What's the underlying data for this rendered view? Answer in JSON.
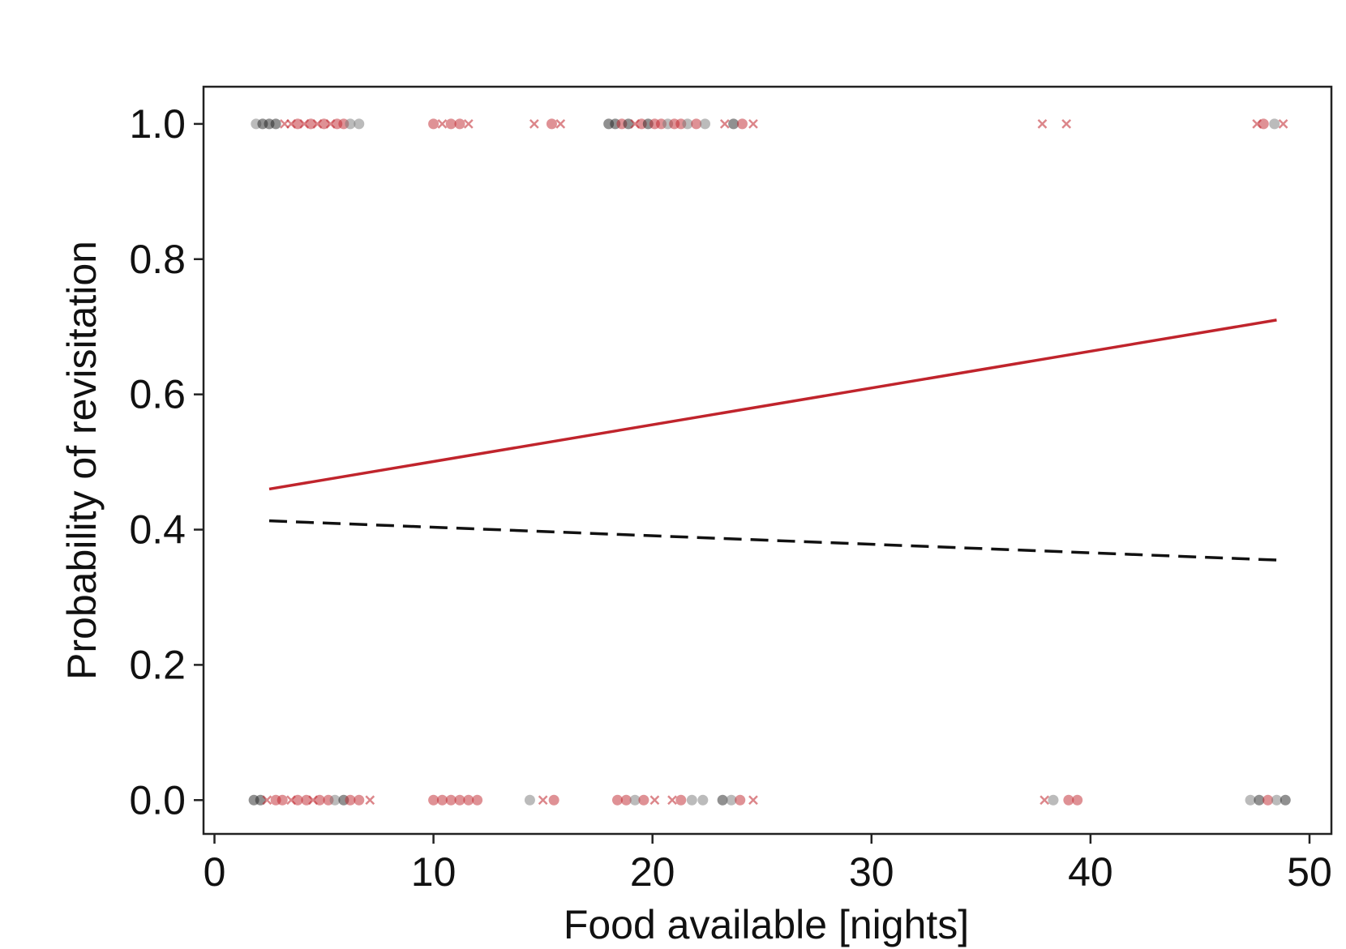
{
  "chart_data": {
    "type": "scatter",
    "title": "",
    "xlabel": "Food available [nights]",
    "ylabel": "Probability of revisitation",
    "xlim": [
      -0.5,
      51
    ],
    "ylim": [
      -0.05,
      1.055
    ],
    "x_ticks": [
      0,
      10,
      20,
      30,
      40,
      50
    ],
    "x_tick_labels": [
      "0",
      "10",
      "20",
      "30",
      "40",
      "50"
    ],
    "y_ticks": [
      0.0,
      0.2,
      0.4,
      0.6,
      0.8,
      1.0
    ],
    "y_tick_labels": [
      "0.0",
      "0.2",
      "0.4",
      "0.6",
      "0.8",
      "1.0"
    ],
    "grid": false,
    "legend": "none",
    "colors": {
      "red": "#c0242c",
      "black": "#222222",
      "grey": "#777777"
    },
    "fitted_lines": [
      {
        "style": "solid",
        "color": "#c0242c",
        "x": [
          2.5,
          48.5
        ],
        "y": [
          0.46,
          0.71
        ]
      },
      {
        "style": "dashed",
        "color": "#111111",
        "x": [
          2.5,
          48.5
        ],
        "y": [
          0.413,
          0.355
        ]
      }
    ],
    "points": [
      {
        "x": 1.9,
        "y": 1,
        "marker": "circle",
        "color": "#777777"
      },
      {
        "x": 2.2,
        "y": 1,
        "marker": "circle",
        "color": "#222222"
      },
      {
        "x": 2.5,
        "y": 1,
        "marker": "circle",
        "color": "#222222"
      },
      {
        "x": 2.8,
        "y": 1,
        "marker": "circle",
        "color": "#222222"
      },
      {
        "x": 3.2,
        "y": 1,
        "marker": "cross",
        "color": "#c0242c"
      },
      {
        "x": 3.5,
        "y": 1,
        "marker": "cross",
        "color": "#c0242c"
      },
      {
        "x": 3.8,
        "y": 1,
        "marker": "circle",
        "color": "#c0242c"
      },
      {
        "x": 4.1,
        "y": 1,
        "marker": "cross",
        "color": "#c0242c"
      },
      {
        "x": 4.4,
        "y": 1,
        "marker": "circle",
        "color": "#c0242c"
      },
      {
        "x": 4.7,
        "y": 1,
        "marker": "cross",
        "color": "#c0242c"
      },
      {
        "x": 5.0,
        "y": 1,
        "marker": "circle",
        "color": "#c0242c"
      },
      {
        "x": 5.3,
        "y": 1,
        "marker": "cross",
        "color": "#c0242c"
      },
      {
        "x": 5.6,
        "y": 1,
        "marker": "circle",
        "color": "#c0242c"
      },
      {
        "x": 5.9,
        "y": 1,
        "marker": "circle",
        "color": "#c0242c"
      },
      {
        "x": 6.2,
        "y": 1,
        "marker": "circle",
        "color": "#777777"
      },
      {
        "x": 6.6,
        "y": 1,
        "marker": "circle",
        "color": "#777777"
      },
      {
        "x": 10.0,
        "y": 1,
        "marker": "circle",
        "color": "#c0242c"
      },
      {
        "x": 10.4,
        "y": 1,
        "marker": "cross",
        "color": "#c0242c"
      },
      {
        "x": 10.8,
        "y": 1,
        "marker": "circle",
        "color": "#c0242c"
      },
      {
        "x": 11.2,
        "y": 1,
        "marker": "circle",
        "color": "#c0242c"
      },
      {
        "x": 11.6,
        "y": 1,
        "marker": "cross",
        "color": "#c0242c"
      },
      {
        "x": 14.6,
        "y": 1,
        "marker": "cross",
        "color": "#c0242c"
      },
      {
        "x": 15.4,
        "y": 1,
        "marker": "circle",
        "color": "#c0242c"
      },
      {
        "x": 15.8,
        "y": 1,
        "marker": "cross",
        "color": "#c0242c"
      },
      {
        "x": 18.0,
        "y": 1,
        "marker": "circle",
        "color": "#222222"
      },
      {
        "x": 18.3,
        "y": 1,
        "marker": "circle",
        "color": "#222222"
      },
      {
        "x": 18.6,
        "y": 1,
        "marker": "circle",
        "color": "#c0242c"
      },
      {
        "x": 18.9,
        "y": 1,
        "marker": "circle",
        "color": "#222222"
      },
      {
        "x": 19.2,
        "y": 1,
        "marker": "cross",
        "color": "#c0242c"
      },
      {
        "x": 19.5,
        "y": 1,
        "marker": "circle",
        "color": "#c0242c"
      },
      {
        "x": 19.8,
        "y": 1,
        "marker": "circle",
        "color": "#222222"
      },
      {
        "x": 20.1,
        "y": 1,
        "marker": "circle",
        "color": "#c0242c"
      },
      {
        "x": 20.4,
        "y": 1,
        "marker": "circle",
        "color": "#c0242c"
      },
      {
        "x": 20.7,
        "y": 1,
        "marker": "circle",
        "color": "#777777"
      },
      {
        "x": 21.0,
        "y": 1,
        "marker": "circle",
        "color": "#c0242c"
      },
      {
        "x": 21.3,
        "y": 1,
        "marker": "circle",
        "color": "#c0242c"
      },
      {
        "x": 21.6,
        "y": 1,
        "marker": "circle",
        "color": "#777777"
      },
      {
        "x": 22.0,
        "y": 1,
        "marker": "circle",
        "color": "#c0242c"
      },
      {
        "x": 22.4,
        "y": 1,
        "marker": "circle",
        "color": "#777777"
      },
      {
        "x": 23.3,
        "y": 1,
        "marker": "cross",
        "color": "#c0242c"
      },
      {
        "x": 23.7,
        "y": 1,
        "marker": "circle",
        "color": "#222222"
      },
      {
        "x": 24.1,
        "y": 1,
        "marker": "circle",
        "color": "#c0242c"
      },
      {
        "x": 24.6,
        "y": 1,
        "marker": "cross",
        "color": "#c0242c"
      },
      {
        "x": 37.8,
        "y": 1,
        "marker": "cross",
        "color": "#c0242c"
      },
      {
        "x": 38.9,
        "y": 1,
        "marker": "cross",
        "color": "#c0242c"
      },
      {
        "x": 47.6,
        "y": 1,
        "marker": "cross",
        "color": "#c0242c"
      },
      {
        "x": 47.9,
        "y": 1,
        "marker": "circle",
        "color": "#c0242c"
      },
      {
        "x": 48.4,
        "y": 1,
        "marker": "circle",
        "color": "#777777"
      },
      {
        "x": 48.8,
        "y": 1,
        "marker": "cross",
        "color": "#c0242c"
      },
      {
        "x": 1.8,
        "y": 0,
        "marker": "circle",
        "color": "#222222"
      },
      {
        "x": 2.1,
        "y": 0,
        "marker": "circle",
        "color": "#222222"
      },
      {
        "x": 2.4,
        "y": 0,
        "marker": "cross",
        "color": "#c0242c"
      },
      {
        "x": 2.8,
        "y": 0,
        "marker": "circle",
        "color": "#c0242c"
      },
      {
        "x": 3.1,
        "y": 0,
        "marker": "circle",
        "color": "#c0242c"
      },
      {
        "x": 3.5,
        "y": 0,
        "marker": "cross",
        "color": "#c0242c"
      },
      {
        "x": 3.8,
        "y": 0,
        "marker": "circle",
        "color": "#c0242c"
      },
      {
        "x": 4.2,
        "y": 0,
        "marker": "circle",
        "color": "#c0242c"
      },
      {
        "x": 4.5,
        "y": 0,
        "marker": "cross",
        "color": "#c0242c"
      },
      {
        "x": 4.8,
        "y": 0,
        "marker": "circle",
        "color": "#c0242c"
      },
      {
        "x": 5.2,
        "y": 0,
        "marker": "circle",
        "color": "#c0242c"
      },
      {
        "x": 5.5,
        "y": 0,
        "marker": "circle",
        "color": "#777777"
      },
      {
        "x": 5.9,
        "y": 0,
        "marker": "circle",
        "color": "#222222"
      },
      {
        "x": 6.2,
        "y": 0,
        "marker": "circle",
        "color": "#c0242c"
      },
      {
        "x": 6.6,
        "y": 0,
        "marker": "circle",
        "color": "#c0242c"
      },
      {
        "x": 7.1,
        "y": 0,
        "marker": "cross",
        "color": "#c0242c"
      },
      {
        "x": 10.0,
        "y": 0,
        "marker": "circle",
        "color": "#c0242c"
      },
      {
        "x": 10.4,
        "y": 0,
        "marker": "circle",
        "color": "#c0242c"
      },
      {
        "x": 10.8,
        "y": 0,
        "marker": "circle",
        "color": "#c0242c"
      },
      {
        "x": 11.2,
        "y": 0,
        "marker": "circle",
        "color": "#c0242c"
      },
      {
        "x": 11.6,
        "y": 0,
        "marker": "circle",
        "color": "#c0242c"
      },
      {
        "x": 12.0,
        "y": 0,
        "marker": "circle",
        "color": "#c0242c"
      },
      {
        "x": 14.4,
        "y": 0,
        "marker": "circle",
        "color": "#777777"
      },
      {
        "x": 15.0,
        "y": 0,
        "marker": "cross",
        "color": "#c0242c"
      },
      {
        "x": 15.5,
        "y": 0,
        "marker": "circle",
        "color": "#c0242c"
      },
      {
        "x": 18.4,
        "y": 0,
        "marker": "circle",
        "color": "#c0242c"
      },
      {
        "x": 18.8,
        "y": 0,
        "marker": "circle",
        "color": "#c0242c"
      },
      {
        "x": 19.2,
        "y": 0,
        "marker": "circle",
        "color": "#777777"
      },
      {
        "x": 19.6,
        "y": 0,
        "marker": "circle",
        "color": "#c0242c"
      },
      {
        "x": 20.1,
        "y": 0,
        "marker": "cross",
        "color": "#c0242c"
      },
      {
        "x": 20.9,
        "y": 0,
        "marker": "cross",
        "color": "#c0242c"
      },
      {
        "x": 21.3,
        "y": 0,
        "marker": "circle",
        "color": "#c0242c"
      },
      {
        "x": 21.8,
        "y": 0,
        "marker": "circle",
        "color": "#777777"
      },
      {
        "x": 22.3,
        "y": 0,
        "marker": "circle",
        "color": "#777777"
      },
      {
        "x": 23.2,
        "y": 0,
        "marker": "circle",
        "color": "#222222"
      },
      {
        "x": 23.6,
        "y": 0,
        "marker": "circle",
        "color": "#777777"
      },
      {
        "x": 24.0,
        "y": 0,
        "marker": "circle",
        "color": "#c0242c"
      },
      {
        "x": 24.6,
        "y": 0,
        "marker": "cross",
        "color": "#c0242c"
      },
      {
        "x": 37.9,
        "y": 0,
        "marker": "cross",
        "color": "#c0242c"
      },
      {
        "x": 38.3,
        "y": 0,
        "marker": "circle",
        "color": "#777777"
      },
      {
        "x": 39.0,
        "y": 0,
        "marker": "circle",
        "color": "#c0242c"
      },
      {
        "x": 39.4,
        "y": 0,
        "marker": "circle",
        "color": "#c0242c"
      },
      {
        "x": 47.3,
        "y": 0,
        "marker": "circle",
        "color": "#777777"
      },
      {
        "x": 47.7,
        "y": 0,
        "marker": "circle",
        "color": "#222222"
      },
      {
        "x": 48.1,
        "y": 0,
        "marker": "circle",
        "color": "#c0242c"
      },
      {
        "x": 48.5,
        "y": 0,
        "marker": "circle",
        "color": "#777777"
      },
      {
        "x": 48.9,
        "y": 0,
        "marker": "circle",
        "color": "#222222"
      }
    ]
  }
}
